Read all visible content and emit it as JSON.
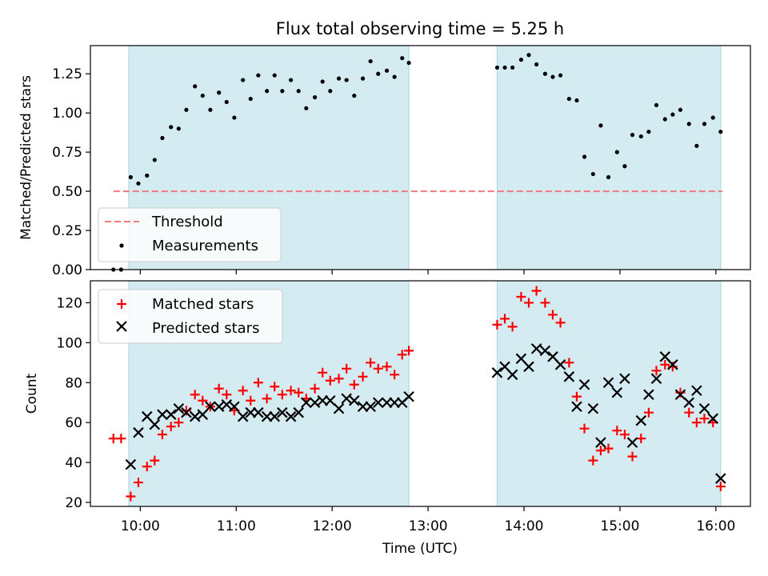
{
  "chart_data": {
    "type": "scatter",
    "title": "Flux total observing time = 5.25 h",
    "xlabel": "Time (UTC)",
    "xlim": [
      9.48,
      16.36
    ],
    "x_ticks": [
      10,
      11,
      12,
      13,
      14,
      15,
      16
    ],
    "x_tick_labels": [
      "10:00",
      "11:00",
      "12:00",
      "13:00",
      "14:00",
      "15:00",
      "16:00"
    ],
    "shaded_intervals": [
      [
        9.88,
        12.8
      ],
      [
        13.72,
        16.05
      ]
    ],
    "shade_color": "#d4ebf1",
    "top_panel": {
      "ylabel": "Matched/Predicted stars",
      "ylim": [
        0,
        1.43
      ],
      "y_ticks": [
        0.0,
        0.25,
        0.5,
        0.75,
        1.0,
        1.25
      ],
      "y_tick_labels": [
        "0.00",
        "0.25",
        "0.50",
        "0.75",
        "1.00",
        "1.25"
      ],
      "threshold": {
        "name": "Threshold",
        "value": 0.5,
        "x_range": [
          9.72,
          16.07
        ],
        "color": "#f07b7b"
      },
      "series": [
        {
          "name": "Measurements",
          "color": "#000000",
          "x": [
            9.72,
            9.8,
            9.9,
            9.98,
            10.07,
            10.15,
            10.23,
            10.32,
            10.4,
            10.48,
            10.57,
            10.65,
            10.73,
            10.82,
            10.9,
            10.98,
            11.07,
            11.15,
            11.23,
            11.32,
            11.4,
            11.48,
            11.57,
            11.65,
            11.73,
            11.82,
            11.9,
            11.98,
            12.07,
            12.15,
            12.23,
            12.32,
            12.4,
            12.48,
            12.57,
            12.65,
            12.73,
            12.8,
            13.72,
            13.8,
            13.88,
            13.97,
            14.05,
            14.13,
            14.22,
            14.3,
            14.38,
            14.47,
            14.55,
            14.63,
            14.72,
            14.8,
            14.88,
            14.97,
            15.05,
            15.13,
            15.22,
            15.3,
            15.38,
            15.47,
            15.55,
            15.63,
            15.72,
            15.8,
            15.88,
            15.97,
            16.05
          ],
          "y": [
            0.0,
            0.0,
            0.59,
            0.55,
            0.6,
            0.7,
            0.84,
            0.91,
            0.9,
            1.02,
            1.17,
            1.11,
            1.02,
            1.13,
            1.07,
            0.97,
            1.21,
            1.09,
            1.24,
            1.14,
            1.24,
            1.14,
            1.21,
            1.14,
            1.03,
            1.1,
            1.2,
            1.14,
            1.22,
            1.21,
            1.11,
            1.22,
            1.33,
            1.25,
            1.27,
            1.23,
            1.35,
            1.32,
            1.29,
            1.29,
            1.29,
            1.34,
            1.37,
            1.31,
            1.25,
            1.23,
            1.24,
            1.09,
            1.08,
            0.72,
            0.61,
            0.92,
            0.59,
            0.75,
            0.66,
            0.86,
            0.85,
            0.88,
            1.05,
            0.96,
            0.99,
            1.02,
            0.93,
            0.79,
            0.93,
            0.97,
            0.88
          ]
        }
      ],
      "legend": {
        "position": "lower-left",
        "entries": [
          "Threshold",
          "Measurements"
        ]
      }
    },
    "bottom_panel": {
      "ylabel": "Count",
      "ylim": [
        18,
        131
      ],
      "y_ticks": [
        20,
        40,
        60,
        80,
        100,
        120
      ],
      "y_tick_labels": [
        "20",
        "40",
        "60",
        "80",
        "100",
        "120"
      ],
      "series": [
        {
          "name": "Matched stars",
          "marker": "plus",
          "color": "#ff0000",
          "x": [
            9.72,
            9.8,
            9.9,
            9.98,
            10.07,
            10.15,
            10.23,
            10.32,
            10.4,
            10.48,
            10.57,
            10.65,
            10.73,
            10.82,
            10.9,
            10.98,
            11.07,
            11.15,
            11.23,
            11.32,
            11.4,
            11.48,
            11.57,
            11.65,
            11.73,
            11.82,
            11.9,
            11.98,
            12.07,
            12.15,
            12.23,
            12.32,
            12.4,
            12.48,
            12.57,
            12.65,
            12.73,
            12.8,
            13.72,
            13.8,
            13.88,
            13.97,
            14.05,
            14.13,
            14.22,
            14.3,
            14.38,
            14.47,
            14.55,
            14.63,
            14.72,
            14.8,
            14.88,
            14.97,
            15.05,
            15.13,
            15.22,
            15.3,
            15.38,
            15.47,
            15.55,
            15.63,
            15.72,
            15.8,
            15.88,
            15.97,
            16.05
          ],
          "y": [
            52,
            52,
            23,
            30,
            38,
            41,
            54,
            58,
            60,
            66,
            74,
            71,
            68,
            77,
            74,
            66,
            76,
            71,
            80,
            72,
            78,
            74,
            76,
            75,
            72,
            77,
            85,
            81,
            82,
            87,
            79,
            83,
            90,
            87,
            88,
            84,
            94,
            96,
            109,
            112,
            108,
            123,
            120,
            126,
            120,
            114,
            110,
            90,
            73,
            57,
            41,
            46,
            47,
            56,
            54,
            43,
            52,
            65,
            86,
            89,
            88,
            75,
            65,
            60,
            62,
            60,
            28
          ]
        },
        {
          "name": "Predicted stars",
          "marker": "x",
          "color": "#000000",
          "x": [
            9.9,
            9.98,
            10.07,
            10.15,
            10.23,
            10.32,
            10.4,
            10.48,
            10.57,
            10.65,
            10.73,
            10.82,
            10.9,
            10.98,
            11.07,
            11.15,
            11.23,
            11.32,
            11.4,
            11.48,
            11.57,
            11.65,
            11.73,
            11.82,
            11.9,
            11.98,
            12.07,
            12.15,
            12.23,
            12.32,
            12.4,
            12.48,
            12.57,
            12.65,
            12.73,
            12.8,
            13.72,
            13.8,
            13.88,
            13.97,
            14.05,
            14.13,
            14.22,
            14.3,
            14.38,
            14.47,
            14.55,
            14.63,
            14.72,
            14.8,
            14.88,
            14.97,
            15.05,
            15.13,
            15.22,
            15.3,
            15.38,
            15.47,
            15.55,
            15.63,
            15.72,
            15.8,
            15.88,
            15.97,
            16.05
          ],
          "y": [
            39,
            55,
            63,
            59,
            64,
            64,
            67,
            65,
            63,
            64,
            68,
            68,
            69,
            68,
            63,
            65,
            65,
            63,
            63,
            65,
            63,
            65,
            70,
            70,
            71,
            71,
            67,
            72,
            71,
            68,
            68,
            70,
            70,
            70,
            70,
            73,
            85,
            88,
            84,
            92,
            88,
            97,
            96,
            93,
            89,
            83,
            68,
            79,
            67,
            50,
            80,
            75,
            82,
            50,
            61,
            74,
            82,
            93,
            89,
            74,
            70,
            76,
            67,
            62,
            32
          ]
        }
      ],
      "legend": {
        "position": "upper-left",
        "entries": [
          "Matched stars",
          "Predicted stars"
        ]
      }
    }
  }
}
